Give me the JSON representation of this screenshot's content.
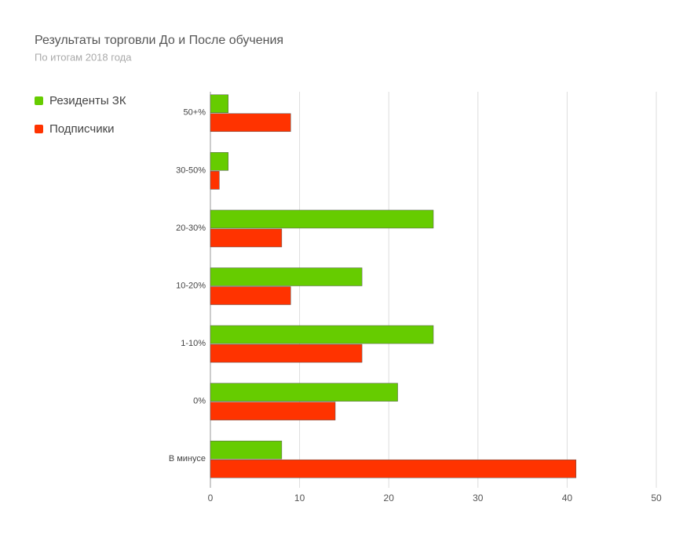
{
  "chart_data": {
    "type": "hbar",
    "title": "Результаты торговли До и После обучения",
    "subtitle": "По итогам 2018 года",
    "categories": [
      "50+%",
      "30-50%",
      "20-30%",
      "10-20%",
      "1-10%",
      "0%",
      "В минусе"
    ],
    "series": [
      {
        "name": "Резиденты ЗК",
        "color": "#66cc00",
        "values": [
          2,
          2,
          25,
          17,
          25,
          21,
          8
        ]
      },
      {
        "name": "Подписчики",
        "color": "#ff3300",
        "values": [
          9,
          1,
          8,
          9,
          17,
          14,
          41
        ]
      }
    ],
    "xlim": [
      0,
      50
    ],
    "xticks": [
      0,
      10,
      20,
      30,
      40,
      50
    ],
    "grid": true,
    "legend": "top-left"
  }
}
